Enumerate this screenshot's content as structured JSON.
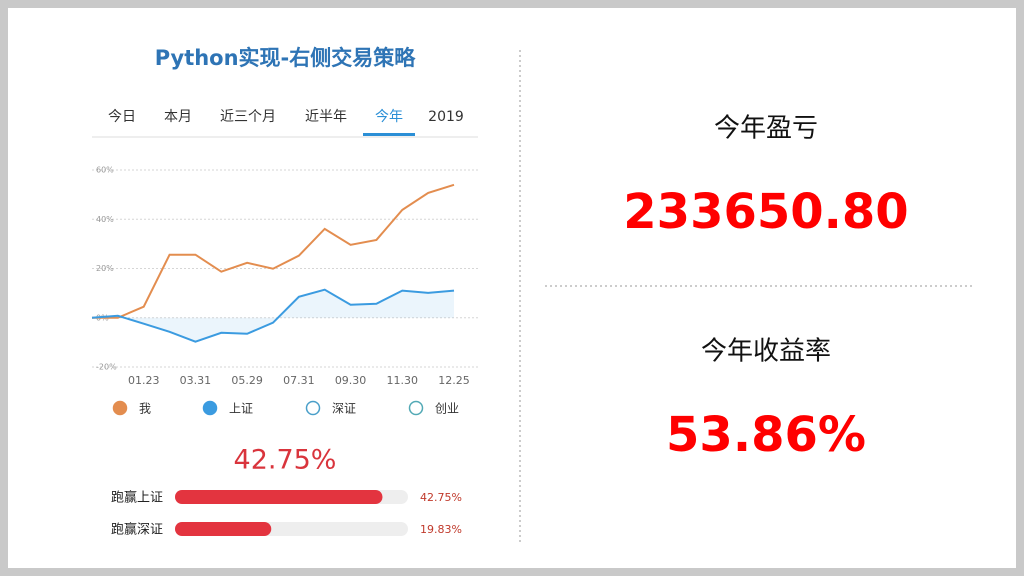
{
  "title": "Python实现-右侧交易策略",
  "tabs": [
    "今日",
    "本月",
    "近三个月",
    "近半年",
    "今年",
    "2019"
  ],
  "selected_tab": 4,
  "chart_data": [
    {
      "type": "line",
      "categories": [
        null,
        null,
        "01.23",
        null,
        "03.31",
        null,
        "05.29",
        null,
        "07.31",
        null,
        "09.30",
        null,
        "11.30",
        null,
        "12.25"
      ],
      "series": [
        {
          "name": "我",
          "color": "#e38d4f",
          "active": true,
          "fill": false,
          "values": [
            0,
            0,
            4.5,
            25.6,
            25.6,
            18.7,
            22.3,
            19.9,
            25.2,
            36.1,
            29.6,
            31.6,
            43.8,
            50.7,
            54.0
          ]
        },
        {
          "name": "上证",
          "color": "#3b9be0",
          "active": true,
          "fill": true,
          "values": [
            0,
            0.8,
            -2.4,
            -5.7,
            -9.7,
            -6.1,
            -6.5,
            -2.0,
            8.5,
            11.4,
            5.3,
            5.7,
            11.0,
            10.1,
            11.0
          ]
        },
        {
          "name": "深证",
          "color": "#4a9fc9",
          "active": false,
          "fill": false,
          "values": [
            null,
            null,
            null,
            null,
            null,
            null,
            null,
            null,
            null,
            null,
            null,
            null,
            null,
            null,
            null
          ]
        },
        {
          "name": "创业",
          "color": "#52a9b5",
          "active": false,
          "fill": false,
          "values": [
            null,
            null,
            null,
            null,
            null,
            null,
            null,
            null,
            null,
            null,
            null,
            null,
            null,
            null,
            null
          ]
        }
      ],
      "ylim": [
        -20,
        60
      ],
      "yticks": [
        {
          "value": -20,
          "label": "-20%"
        },
        {
          "value": 0,
          "label": "0%"
        },
        {
          "value": 20,
          "label": "20%"
        },
        {
          "value": 40,
          "label": "40%"
        },
        {
          "value": 60,
          "label": "60%"
        }
      ],
      "grid": true
    },
    {
      "type": "hbar",
      "headline": "42.75%",
      "categories": [
        "跑赢上证",
        "跑赢深证"
      ],
      "values": [
        42.75,
        19.83
      ],
      "value_labels": [
        "42.75%",
        "19.83%"
      ],
      "color": "#e3343f",
      "xlim": [
        0,
        48
      ]
    }
  ],
  "stats": [
    {
      "label": "今年盈亏",
      "value": "233650.80"
    },
    {
      "label": "今年收益率",
      "value": "53.86%"
    }
  ]
}
